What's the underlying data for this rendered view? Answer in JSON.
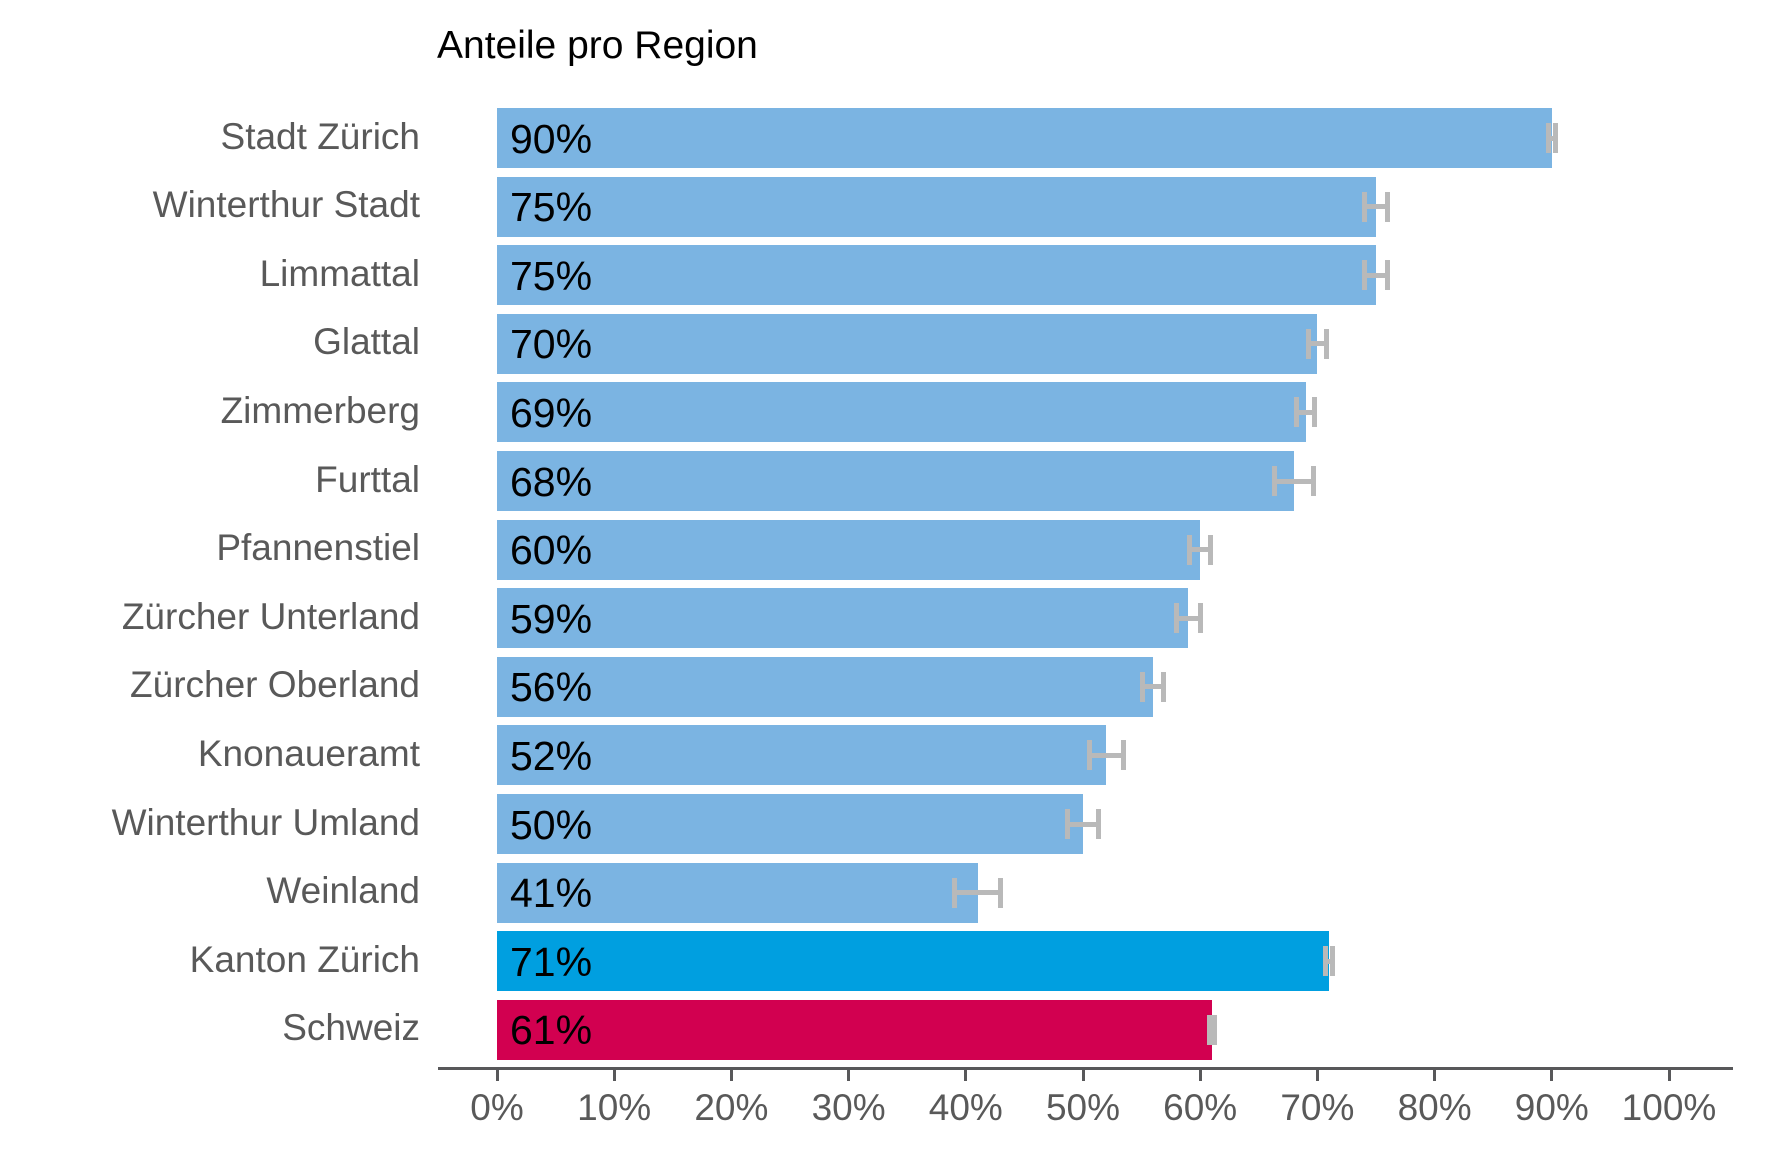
{
  "chart_data": {
    "type": "bar",
    "orientation": "horizontal",
    "title": "Anteile pro Region",
    "categories": [
      "Stadt Zürich",
      "Winterthur Stadt",
      "Limmattal",
      "Glattal",
      "Zimmerberg",
      "Furttal",
      "Pfannenstiel",
      "Zürcher Unterland",
      "Zürcher Oberland",
      "Knonaueramt",
      "Winterthur Umland",
      "Weinland",
      "Kanton Zürich",
      "Schweiz"
    ],
    "values": [
      90,
      75,
      75,
      70,
      69,
      68,
      60,
      59,
      56,
      52,
      50,
      41,
      71,
      61
    ],
    "value_labels": [
      "90%",
      "75%",
      "75%",
      "70%",
      "69%",
      "68%",
      "60%",
      "59%",
      "56%",
      "52%",
      "50%",
      "41%",
      "71%",
      "61%"
    ],
    "error_margins_pct": [
      0.5,
      1.2,
      1.2,
      1.0,
      1.0,
      1.9,
      1.1,
      1.2,
      1.1,
      1.7,
      1.5,
      2.2,
      0.5,
      0.4
    ],
    "bar_colors": [
      "#7bb4e2",
      "#7bb4e2",
      "#7bb4e2",
      "#7bb4e2",
      "#7bb4e2",
      "#7bb4e2",
      "#7bb4e2",
      "#7bb4e2",
      "#7bb4e2",
      "#7bb4e2",
      "#7bb4e2",
      "#7bb4e2",
      "#009fe0",
      "#d20050"
    ],
    "xlim": [
      0,
      100
    ],
    "x_tick_step": 10,
    "x_tick_labels": [
      "0%",
      "10%",
      "20%",
      "30%",
      "40%",
      "50%",
      "60%",
      "70%",
      "80%",
      "90%",
      "100%"
    ],
    "grid": false,
    "legend": false,
    "value_labels_inside_bars": true,
    "colors": {
      "bar_default": "#7bb4e2",
      "bar_kanton": "#009fe0",
      "bar_schweiz": "#d20050",
      "error_bar": "#b9b9b9",
      "axis_line": "#58585a",
      "tick_label": "#595959",
      "category_label": "#595959",
      "value_label": "#000000",
      "title": "#000000"
    }
  }
}
